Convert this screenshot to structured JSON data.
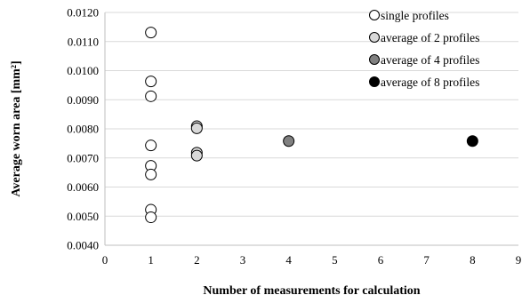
{
  "chart_data": {
    "type": "scatter",
    "xlabel": "Number of measurements for calculation",
    "ylabel": "Average worn area [mm²]",
    "xlim": [
      0,
      9
    ],
    "ylim": [
      0.004,
      0.012
    ],
    "x_ticks": [
      "0",
      "1",
      "2",
      "3",
      "4",
      "5",
      "6",
      "7",
      "8",
      "9"
    ],
    "y_ticks": [
      "0.0040",
      "0.0050",
      "0.0060",
      "0.0070",
      "0.0080",
      "0.0090",
      "0.0100",
      "0.0110",
      "0.0120"
    ],
    "grid": "horizontal",
    "legend_position": "top-right",
    "series": [
      {
        "name": "single profiles",
        "color": "#ffffff",
        "points": [
          [
            1,
            0.01131
          ],
          [
            1,
            0.00963
          ],
          [
            1,
            0.00912
          ],
          [
            1,
            0.00743
          ],
          [
            1,
            0.00673
          ],
          [
            1,
            0.00643
          ],
          [
            1,
            0.00522
          ],
          [
            1,
            0.00496
          ]
        ]
      },
      {
        "name": "average of 2 profiles",
        "color": "#d9d9d9",
        "points": [
          [
            2,
            0.00809
          ],
          [
            2,
            0.00802
          ],
          [
            2,
            0.00718
          ],
          [
            2,
            0.00708
          ]
        ]
      },
      {
        "name": "average of 4 profiles",
        "color": "#808080",
        "points": [
          [
            4,
            0.00758
          ]
        ]
      },
      {
        "name": "average of 8 profiles",
        "color": "#000000",
        "points": [
          [
            8,
            0.00758
          ]
        ]
      }
    ]
  }
}
